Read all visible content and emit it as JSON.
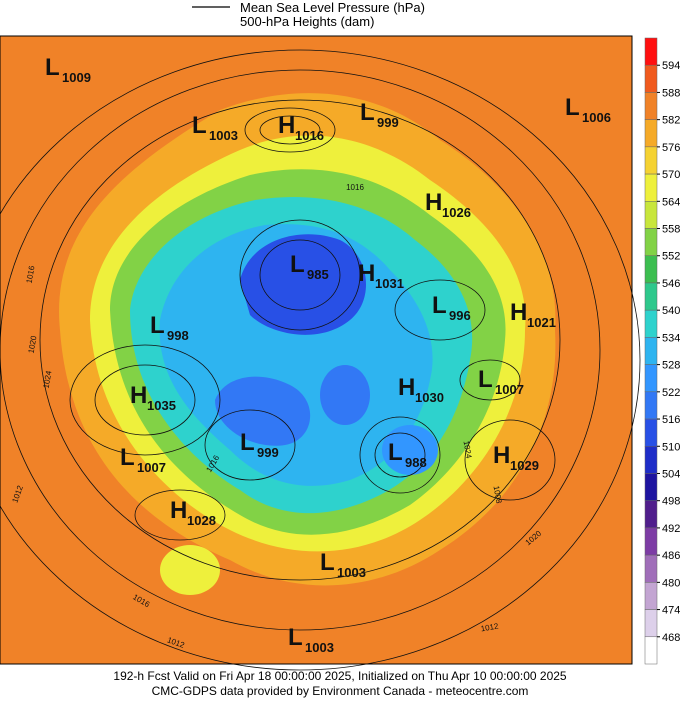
{
  "legend": {
    "line_label": "Mean Sea Level Pressure (hPa)",
    "fill_label": "500-hPa Heights (dam)"
  },
  "colorbar": {
    "ticks": [
      594,
      588,
      582,
      576,
      570,
      564,
      558,
      552,
      546,
      540,
      534,
      528,
      522,
      516,
      510,
      504,
      498,
      492,
      486,
      480,
      474,
      468
    ],
    "colors": [
      "#ff1010",
      "#f05a1e",
      "#f08228",
      "#f5aa28",
      "#f5d232",
      "#eef03c",
      "#c8e63c",
      "#82d246",
      "#3cbe50",
      "#2ec88c",
      "#2ed2cd",
      "#2eb4f0",
      "#3296ff",
      "#3278f5",
      "#2850e6",
      "#1e2dc8",
      "#1e14a0",
      "#501e8c",
      "#7d3ca5",
      "#a06eb9",
      "#c3a5d2",
      "#ddd0ea",
      "#ffffff"
    ]
  },
  "centers": [
    {
      "letter": "L",
      "value": "1009"
    },
    {
      "letter": "L",
      "value": "1003"
    },
    {
      "letter": "H",
      "value": "1016"
    },
    {
      "letter": "L",
      "value": "999"
    },
    {
      "letter": "L",
      "value": "1006"
    },
    {
      "letter": "H",
      "value": "1026"
    },
    {
      "letter": "L",
      "value": "985"
    },
    {
      "letter": "H",
      "value": "1031"
    },
    {
      "letter": "L",
      "value": "996"
    },
    {
      "letter": "H",
      "value": "1021"
    },
    {
      "letter": "L",
      "value": "998"
    },
    {
      "letter": "H",
      "value": "1035"
    },
    {
      "letter": "H",
      "value": "1030"
    },
    {
      "letter": "L",
      "value": "1007"
    },
    {
      "letter": "L",
      "value": "999"
    },
    {
      "letter": "L",
      "value": "988"
    },
    {
      "letter": "H",
      "value": "1029"
    },
    {
      "letter": "L",
      "value": "1007"
    },
    {
      "letter": "H",
      "value": "1028"
    },
    {
      "letter": "L",
      "value": "1003"
    },
    {
      "letter": "L",
      "value": "1003"
    }
  ],
  "contour_labels": [
    "1016",
    "1016",
    "1016",
    "1016",
    "1020",
    "1020",
    "1024",
    "1024",
    "1012",
    "1012",
    "1012",
    "1008"
  ],
  "footer": {
    "line1": "192-h Fcst Valid on Fri Apr 18 00:00:00 2025, Initialized on Thu Apr 10 00:00:00 2025",
    "line2": "CMC-GDPS data provided by Environment Canada - meteocentre.com"
  }
}
